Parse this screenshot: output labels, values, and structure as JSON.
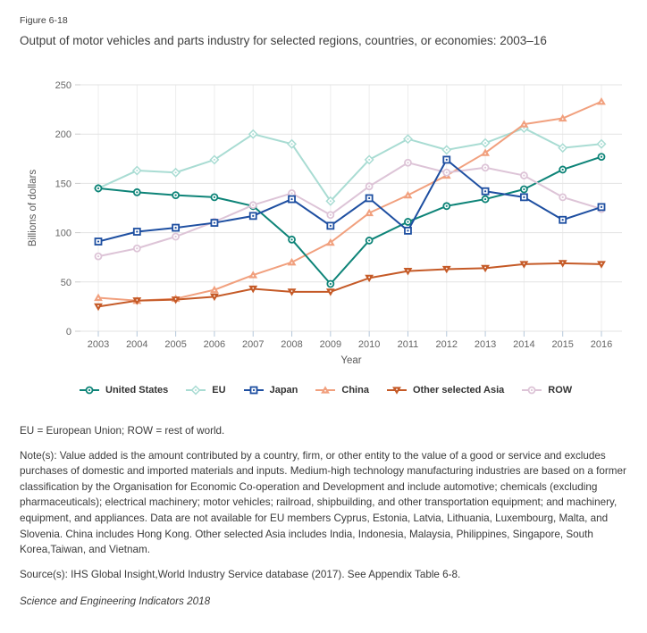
{
  "figure": {
    "label": "Figure 6-18",
    "title": "Output of motor vehicles and parts industry for selected regions, countries, or economies: 2003–16"
  },
  "chart_data": {
    "type": "line",
    "xlabel": "Year",
    "ylabel": "Billions of dollars",
    "x": [
      2003,
      2004,
      2005,
      2006,
      2007,
      2008,
      2009,
      2010,
      2011,
      2012,
      2013,
      2014,
      2015,
      2016
    ],
    "ylim": [
      0,
      250
    ],
    "yticks": [
      0,
      50,
      100,
      150,
      200,
      250
    ],
    "grid": true,
    "legend_position": "bottom",
    "series": [
      {
        "name": "United States",
        "marker": "circle",
        "color": "#0e8478",
        "values": [
          145,
          141,
          138,
          136,
          127,
          93,
          48,
          92,
          111,
          127,
          134,
          144,
          164,
          177
        ]
      },
      {
        "name": "EU",
        "marker": "diamond",
        "color": "#a9dcd3",
        "values": [
          145,
          163,
          161,
          174,
          200,
          190,
          132,
          174,
          195,
          184,
          191,
          206,
          186,
          190
        ]
      },
      {
        "name": "Japan",
        "marker": "square",
        "color": "#1e4fa1",
        "values": [
          91,
          101,
          105,
          110,
          117,
          134,
          107,
          135,
          102,
          174,
          142,
          136,
          113,
          126
        ]
      },
      {
        "name": "China",
        "marker": "triangle-up",
        "color": "#f1a07e",
        "values": [
          34,
          31,
          33,
          42,
          57,
          70,
          90,
          120,
          138,
          158,
          181,
          210,
          216,
          233
        ]
      },
      {
        "name": "Other selected Asia",
        "marker": "triangle-down",
        "color": "#c55a27",
        "values": [
          25,
          31,
          32,
          35,
          43,
          40,
          40,
          54,
          61,
          63,
          64,
          68,
          69,
          68
        ]
      },
      {
        "name": "ROW",
        "marker": "circle",
        "color": "#ddc4d7",
        "values": [
          76,
          84,
          96,
          111,
          128,
          140,
          118,
          147,
          171,
          161,
          166,
          158,
          136,
          124
        ]
      }
    ]
  },
  "footnotes": {
    "abbreviations": "EU = European Union; ROW = rest of world.",
    "notes": "Note(s): Value added is the amount contributed by a country, firm, or other entity to the value of a good or service and excludes purchases of domestic and imported materials and inputs. Medium-high technology manufacturing industries are based on a former classification by the Organisation for Economic Co-operation and Development and include automotive; chemicals (excluding pharmaceuticals); electrical machinery; motor vehicles; railroad, shipbuilding, and other transportation equipment; and machinery, equipment, and appliances. Data are not available for EU members Cyprus, Estonia, Latvia, Lithuania, Luxembourg, Malta, and Slovenia. China includes Hong Kong. Other selected Asia includes India, Indonesia, Malaysia, Philippines, Singapore, South Korea,Taiwan, and Vietnam.",
    "sources": "Source(s): IHS Global Insight,World Industry Service database (2017). See Appendix Table 6-8.",
    "publication": "Science and Engineering Indicators 2018"
  }
}
